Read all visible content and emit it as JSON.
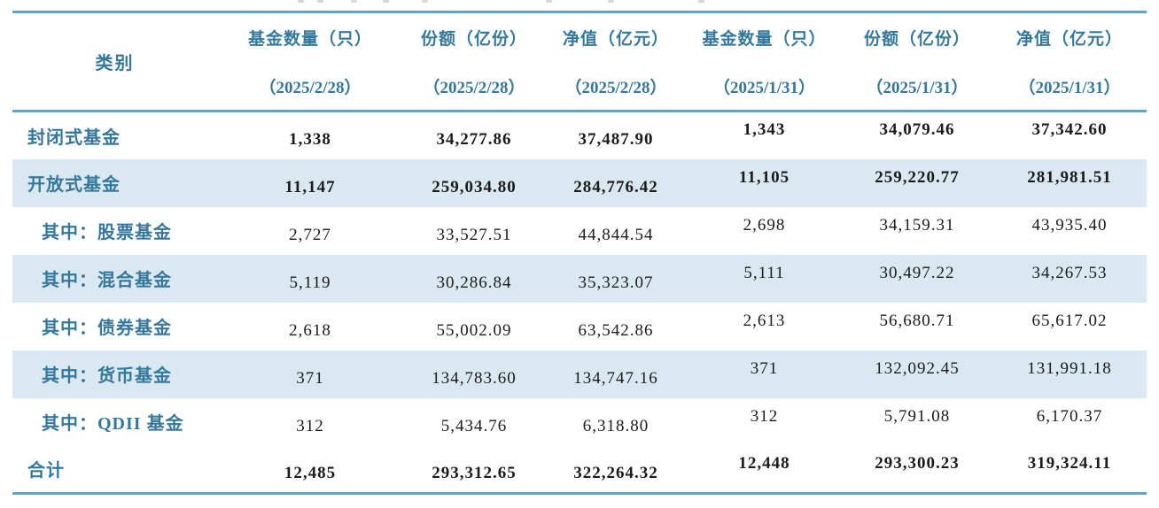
{
  "theme": {
    "accent_text": "#35789B",
    "border": "#5FA6C0",
    "stripe": "#D9E8F1",
    "number_text": "#1b1b1b"
  },
  "table": {
    "category_header": "类别",
    "columns": [
      {
        "label": "基金数量（只）",
        "date": "（2025/2/28）"
      },
      {
        "label": "份额（亿份）",
        "date": "（2025/2/28）"
      },
      {
        "label": "净值（亿元）",
        "date": "（2025/2/28）"
      },
      {
        "label": "基金数量（只）",
        "date": "（2025/1/31）"
      },
      {
        "label": "份额（亿份）",
        "date": "（2025/1/31）"
      },
      {
        "label": "净值（亿元）",
        "date": "（2025/1/31）"
      }
    ],
    "rows": [
      {
        "category": "封闭式基金",
        "indent": false,
        "bold": true,
        "striped": false,
        "values": [
          "1,338",
          "34,277.86",
          "37,487.90",
          "1,343",
          "34,079.46",
          "37,342.60"
        ]
      },
      {
        "category": "开放式基金",
        "indent": false,
        "bold": true,
        "striped": true,
        "values": [
          "11,147",
          "259,034.80",
          "284,776.42",
          "11,105",
          "259,220.77",
          "281,981.51"
        ]
      },
      {
        "category": "其中：股票基金",
        "indent": true,
        "bold": false,
        "striped": false,
        "values": [
          "2,727",
          "33,527.51",
          "44,844.54",
          "2,698",
          "34,159.31",
          "43,935.40"
        ]
      },
      {
        "category": "其中：混合基金",
        "indent": true,
        "bold": false,
        "striped": true,
        "values": [
          "5,119",
          "30,286.84",
          "35,323.07",
          "5,111",
          "30,497.22",
          "34,267.53"
        ]
      },
      {
        "category": "其中：债券基金",
        "indent": true,
        "bold": false,
        "striped": false,
        "values": [
          "2,618",
          "55,002.09",
          "63,542.86",
          "2,613",
          "56,680.71",
          "65,617.02"
        ]
      },
      {
        "category": "其中：货币基金",
        "indent": true,
        "bold": false,
        "striped": true,
        "values": [
          "371",
          "134,783.60",
          "134,747.16",
          "371",
          "132,092.45",
          "131,991.18"
        ]
      },
      {
        "category": "其中：QDII 基金",
        "indent": true,
        "bold": false,
        "striped": false,
        "values": [
          "312",
          "5,434.76",
          "6,318.80",
          "312",
          "5,791.08",
          "6,170.37"
        ]
      },
      {
        "category": "合计",
        "indent": false,
        "bold": true,
        "striped": false,
        "values": [
          "12,485",
          "293,312.65",
          "322,264.32",
          "12,448",
          "293,300.23",
          "319,324.11"
        ]
      }
    ]
  }
}
